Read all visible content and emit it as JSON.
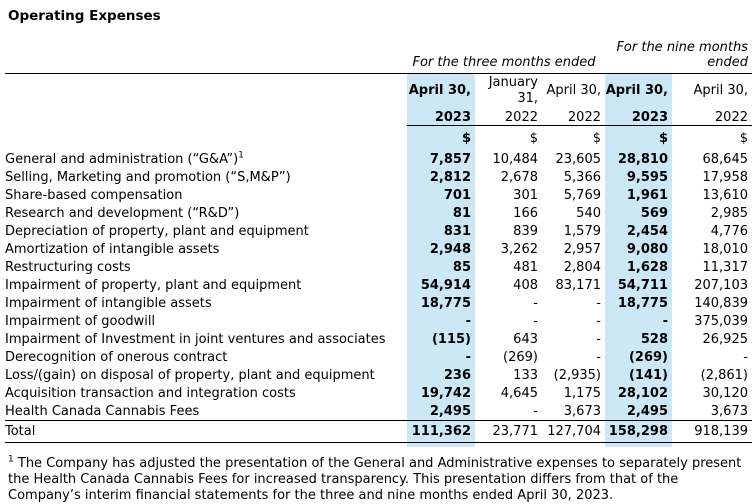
{
  "title": "Operating Expenses",
  "table": {
    "period_headers": {
      "three_months": "For the three months ended",
      "nine_months": "For the nine months ended"
    },
    "columns": [
      {
        "month": "April 30,",
        "year": "2023",
        "currency": "$",
        "highlight": true
      },
      {
        "month": "January 31,",
        "year": "2022",
        "currency": "$",
        "highlight": false
      },
      {
        "month": "April 30,",
        "year": "2022",
        "currency": "$",
        "highlight": false
      },
      {
        "month": "April 30,",
        "year": "2023",
        "currency": "$",
        "highlight": true
      },
      {
        "month": "April 30,",
        "year": "2022",
        "currency": "$",
        "highlight": false
      }
    ],
    "rows": [
      {
        "label": "General and administration (“G&A”)",
        "sup": "1",
        "values": [
          "7,857",
          "10,484",
          "23,605",
          "28,810",
          "68,645"
        ]
      },
      {
        "label": "Selling, Marketing and promotion (“S,M&P”)",
        "values": [
          "2,812",
          "2,678",
          "5,366",
          "9,595",
          "17,958"
        ]
      },
      {
        "label": "Share-based compensation",
        "values": [
          "701",
          "301",
          "5,769",
          "1,961",
          "13,610"
        ]
      },
      {
        "label": "Research and development (“R&D”)",
        "values": [
          "81",
          "166",
          "540",
          "569",
          "2,985"
        ]
      },
      {
        "label": "Depreciation of property, plant and equipment",
        "values": [
          "831",
          "839",
          "1,579",
          "2,454",
          "4,776"
        ]
      },
      {
        "label": "Amortization of intangible assets",
        "values": [
          "2,948",
          "3,262",
          "2,957",
          "9,080",
          "18,010"
        ]
      },
      {
        "label": "Restructuring costs",
        "values": [
          "85",
          "481",
          "2,804",
          "1,628",
          "11,317"
        ]
      },
      {
        "label": "Impairment of property, plant and equipment",
        "values": [
          "54,914",
          "408",
          "83,171",
          "54,711",
          "207,103"
        ]
      },
      {
        "label": "Impairment of intangible assets",
        "values": [
          "18,775",
          "-",
          "-",
          "18,775",
          "140,839"
        ]
      },
      {
        "label": "Impairment of goodwill",
        "values": [
          "-",
          "-",
          "-",
          "-",
          "375,039"
        ]
      },
      {
        "label": "Impairment of Investment in joint ventures and associates",
        "values": [
          "(115)",
          "643",
          "-",
          "528",
          "26,925"
        ]
      },
      {
        "label": "Derecognition of onerous contract",
        "values": [
          "-",
          "(269)",
          "-",
          "(269)",
          "-"
        ]
      },
      {
        "label": "Loss/(gain) on disposal of property, plant and equipment",
        "values": [
          "236",
          "133",
          "(2,935)",
          "(141)",
          "(2,861)"
        ]
      },
      {
        "label": "Acquisition transaction and integration costs",
        "values": [
          "19,742",
          "4,645",
          "1,175",
          "28,102",
          "30,120"
        ]
      },
      {
        "label": "Health Canada Cannabis Fees",
        "values": [
          "2,495",
          "-",
          "3,673",
          "2,495",
          "3,673"
        ]
      }
    ],
    "total": {
      "label": "Total",
      "values": [
        "111,362",
        "23,771",
        "127,704",
        "158,298",
        "918,139"
      ]
    }
  },
  "footnote": {
    "marker": "1",
    "text": "The Company has adjusted the presentation of the General and Administrative expenses to separately present the Health Canada Cannabis Fees for increased transparency. This presentation differs from that of the Company’s interim financial statements for the three and nine months ended April 30, 2023."
  },
  "colors": {
    "highlight": "#cce8f6",
    "rule": "#000000",
    "text": "#000000"
  }
}
